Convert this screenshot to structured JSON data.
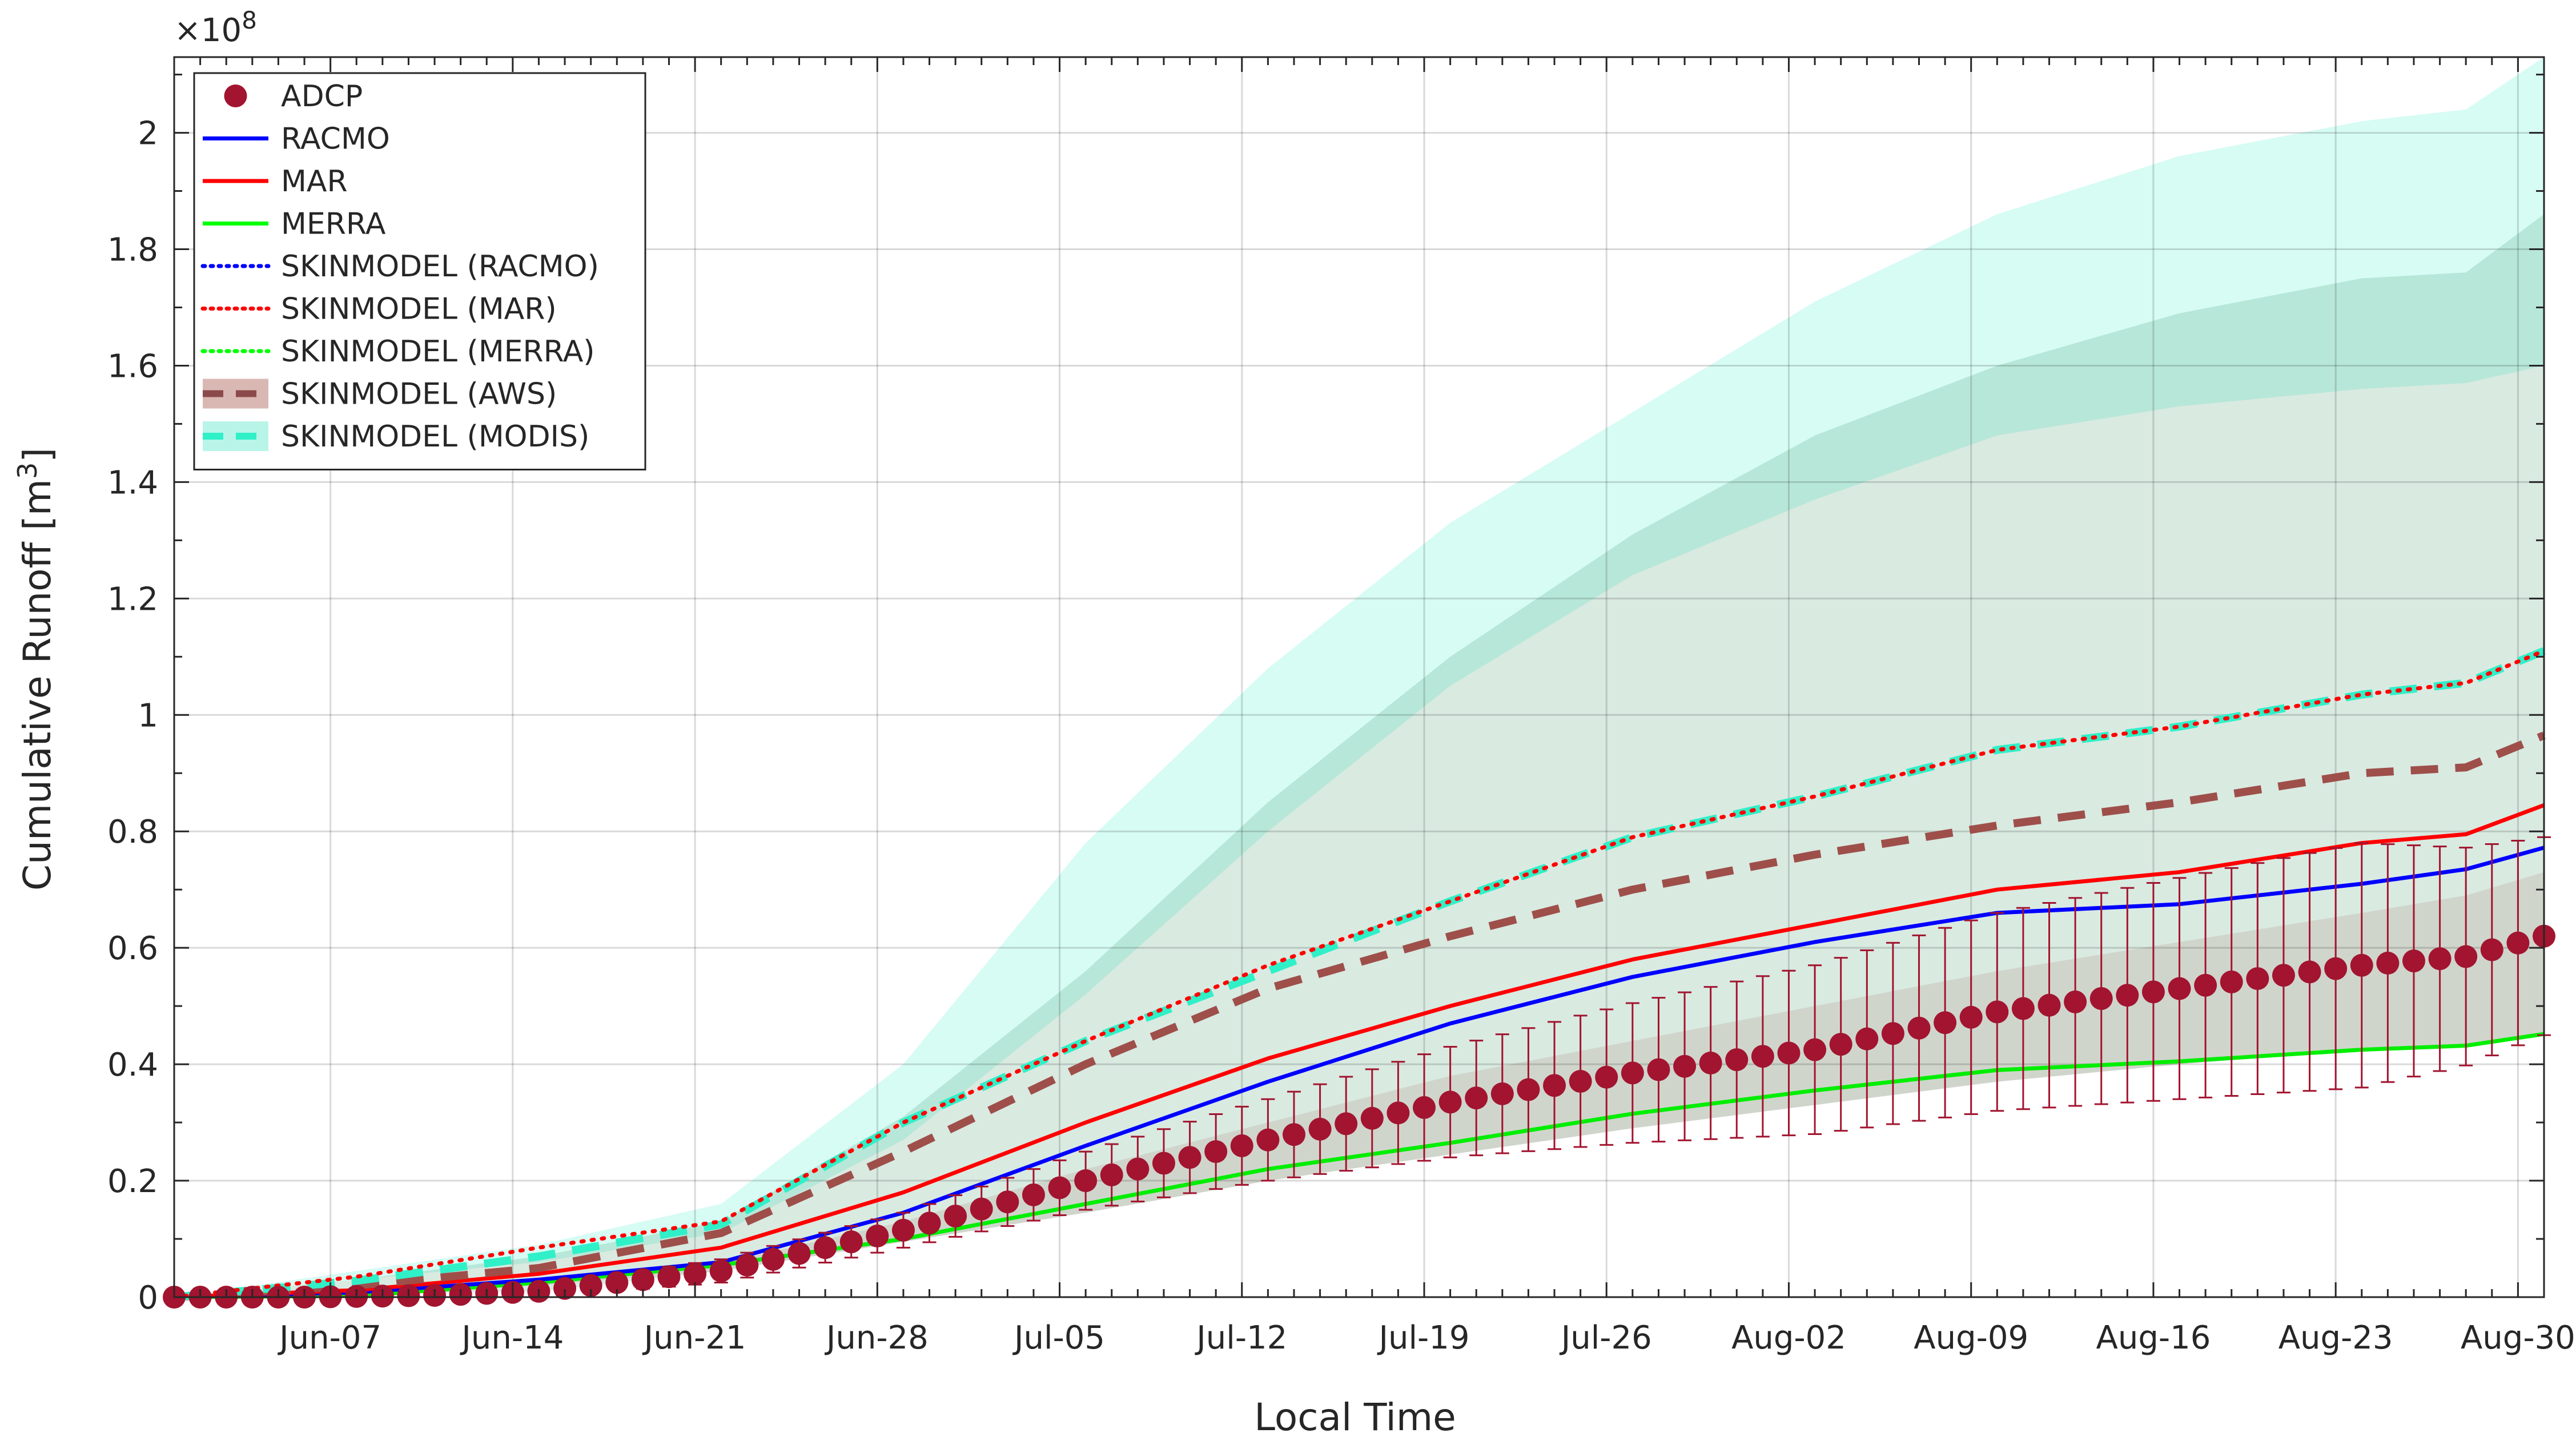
{
  "chart_data": {
    "type": "line",
    "xlabel": "Local Time",
    "ylabel": "Cumulative Runoff [m",
    "ylabel_sup": "3",
    "ylabel_end": "]",
    "y_exponent_prefix": "×10",
    "y_exponent": "8",
    "x_range_days": [
      0,
      91
    ],
    "x_start": "Jun-01",
    "ylim": [
      0,
      2.13
    ],
    "y_ticks": [
      0,
      0.2,
      0.4,
      0.6,
      0.8,
      1,
      1.2,
      1.4,
      1.6,
      1.8,
      2
    ],
    "y_tick_labels": [
      "0",
      "0.2",
      "0.4",
      "0.6",
      "0.8",
      "1",
      "1.2",
      "1.4",
      "1.6",
      "1.8",
      "2"
    ],
    "x_ticks_days": [
      6,
      13,
      20,
      27,
      34,
      41,
      48,
      55,
      62,
      69,
      76,
      83,
      90
    ],
    "x_tick_labels": [
      "Jun-07",
      "Jun-14",
      "Jun-21",
      "Jun-28",
      "Jul-05",
      "Jul-12",
      "Jul-19",
      "Jul-26",
      "Aug-02",
      "Aug-09",
      "Aug-16",
      "Aug-23",
      "Aug-30"
    ],
    "grid": true,
    "legend_position": "top-left",
    "legend": [
      {
        "label": "ADCP",
        "style": "marker",
        "color": "#a2142f"
      },
      {
        "label": "RACMO",
        "style": "solid",
        "color": "#0000ff"
      },
      {
        "label": "MAR",
        "style": "solid",
        "color": "#ff0000"
      },
      {
        "label": "MERRA",
        "style": "solid",
        "color": "#00ff00"
      },
      {
        "label": "SKINMODEL (RACMO)",
        "style": "dotted",
        "color": "#0000ff"
      },
      {
        "label": "SKINMODEL (MAR)",
        "style": "dotted",
        "color": "#ff0000"
      },
      {
        "label": "SKINMODEL (MERRA)",
        "style": "dotted",
        "color": "#00ff00"
      },
      {
        "label": "SKINMODEL (AWS)",
        "style": "dashed-band",
        "color": "#8b4a4a",
        "band_color": "#d9b8b3"
      },
      {
        "label": "SKINMODEL (MODIS)",
        "style": "dashed-band",
        "color": "#30f0c8",
        "band_color": "#b8f5e8"
      }
    ],
    "series": [
      {
        "name": "SKINMODEL (MODIS) range",
        "kind": "band",
        "color": "#30f0c8",
        "opacity": 0.2,
        "x": [
          0,
          7,
          14,
          21,
          28,
          35,
          42,
          49,
          56,
          63,
          70,
          77,
          84,
          88,
          91
        ],
        "lower": [
          0,
          0.03,
          0.06,
          0.11,
          0.27,
          0.52,
          0.8,
          1.05,
          1.24,
          1.37,
          1.48,
          1.53,
          1.56,
          1.57,
          1.6
        ],
        "upper": [
          0,
          0.045,
          0.09,
          0.16,
          0.4,
          0.78,
          1.08,
          1.33,
          1.52,
          1.71,
          1.86,
          1.96,
          2.02,
          2.04,
          2.13
        ]
      },
      {
        "name": "SKINMODEL (AWS) range",
        "kind": "band",
        "color": "#b5555a",
        "opacity": 0.15,
        "x": [
          0,
          7,
          14,
          21,
          28,
          35,
          42,
          49,
          56,
          63,
          70,
          77,
          84,
          88,
          91
        ],
        "lower": [
          0,
          0.01,
          0.02,
          0.045,
          0.095,
          0.145,
          0.2,
          0.245,
          0.29,
          0.33,
          0.37,
          0.4,
          0.425,
          0.43,
          0.45
        ],
        "upper": [
          0,
          0.012,
          0.025,
          0.058,
          0.13,
          0.22,
          0.3,
          0.38,
          0.44,
          0.5,
          0.56,
          0.61,
          0.66,
          0.69,
          0.73
        ]
      },
      {
        "name": "SKINMODEL (MODIS) range dark",
        "kind": "band",
        "color": "#2e8b57",
        "opacity": 0.18,
        "x": [
          0,
          7,
          14,
          21,
          28,
          35,
          42,
          49,
          56,
          63,
          70,
          77,
          84,
          88,
          91
        ],
        "lower": [
          0,
          0.005,
          0.01,
          0.045,
          0.095,
          0.145,
          0.2,
          0.245,
          0.29,
          0.33,
          0.37,
          0.4,
          0.425,
          0.43,
          0.45
        ],
        "upper": [
          0,
          0.03,
          0.07,
          0.13,
          0.31,
          0.56,
          0.85,
          1.1,
          1.31,
          1.48,
          1.6,
          1.69,
          1.75,
          1.76,
          1.86
        ]
      },
      {
        "name": "MERRA",
        "kind": "line",
        "color": "#00ee00",
        "dash": "none",
        "width": 7,
        "x": [
          0,
          7,
          14,
          21,
          28,
          35,
          42,
          49,
          56,
          63,
          70,
          77,
          84,
          88,
          91
        ],
        "y": [
          0,
          0.002,
          0.025,
          0.055,
          0.1,
          0.16,
          0.22,
          0.265,
          0.315,
          0.355,
          0.39,
          0.405,
          0.425,
          0.432,
          0.452
        ]
      },
      {
        "name": "RACMO",
        "kind": "line",
        "color": "#0000ff",
        "dash": "none",
        "width": 7,
        "x": [
          0,
          7,
          14,
          21,
          28,
          35,
          42,
          49,
          56,
          63,
          70,
          77,
          84,
          88,
          91
        ],
        "y": [
          0,
          0.008,
          0.03,
          0.06,
          0.145,
          0.26,
          0.37,
          0.47,
          0.55,
          0.61,
          0.66,
          0.675,
          0.71,
          0.735,
          0.772
        ]
      },
      {
        "name": "MAR",
        "kind": "line",
        "color": "#ff0000",
        "dash": "none",
        "width": 7,
        "x": [
          0,
          7,
          14,
          21,
          28,
          35,
          42,
          49,
          56,
          63,
          70,
          77,
          84,
          88,
          91
        ],
        "y": [
          0,
          0.012,
          0.04,
          0.085,
          0.18,
          0.3,
          0.41,
          0.5,
          0.58,
          0.64,
          0.7,
          0.73,
          0.78,
          0.795,
          0.845
        ]
      },
      {
        "name": "SKINMODEL (AWS)",
        "kind": "line",
        "color": "#9e4f4a",
        "dash": "48,30",
        "width": 14,
        "x": [
          0,
          7,
          14,
          21,
          28,
          35,
          42,
          49,
          56,
          63,
          70,
          77,
          84,
          88,
          91
        ],
        "y": [
          0,
          0.02,
          0.05,
          0.11,
          0.25,
          0.4,
          0.53,
          0.62,
          0.7,
          0.76,
          0.81,
          0.85,
          0.9,
          0.91,
          0.965
        ]
      },
      {
        "name": "SKINMODEL (MODIS)",
        "kind": "line",
        "color": "#30f0c8",
        "dash": "48,30",
        "width": 14,
        "x": [
          0,
          7,
          14,
          21,
          28,
          35,
          42,
          49,
          56,
          63,
          70,
          77,
          84,
          88,
          91
        ],
        "y": [
          0,
          0.028,
          0.07,
          0.125,
          0.3,
          0.44,
          0.56,
          0.68,
          0.79,
          0.86,
          0.94,
          0.98,
          1.035,
          1.055,
          1.11
        ]
      },
      {
        "name": "SKINMODEL (MAR)",
        "kind": "line",
        "color": "#ff0000",
        "dash": "4,14",
        "width": 7,
        "x": [
          0,
          7,
          14,
          21,
          28,
          35,
          42,
          49,
          56,
          63,
          70,
          77,
          84,
          88,
          91
        ],
        "y": [
          0,
          0.035,
          0.085,
          0.13,
          0.3,
          0.44,
          0.57,
          0.68,
          0.79,
          0.86,
          0.94,
          0.98,
          1.035,
          1.055,
          1.11
        ]
      },
      {
        "name": "ADCP",
        "kind": "markers",
        "color": "#a2142f",
        "err_color": "#a2142f",
        "x_start": 0,
        "x_step": 1,
        "count": 92,
        "y_knots_x": [
          0,
          5,
          10,
          14,
          21,
          28,
          35,
          42,
          49,
          56,
          63,
          70,
          77,
          84,
          88,
          91
        ],
        "y_knots": [
          0,
          0,
          0.003,
          0.01,
          0.045,
          0.115,
          0.2,
          0.27,
          0.335,
          0.385,
          0.425,
          0.49,
          0.53,
          0.57,
          0.585,
          0.62
        ],
        "err_knots_x": [
          0,
          14,
          28,
          42,
          56,
          70,
          84,
          91
        ],
        "err_knots": [
          0,
          0.01,
          0.03,
          0.07,
          0.12,
          0.17,
          0.21,
          0.17
        ]
      }
    ]
  }
}
